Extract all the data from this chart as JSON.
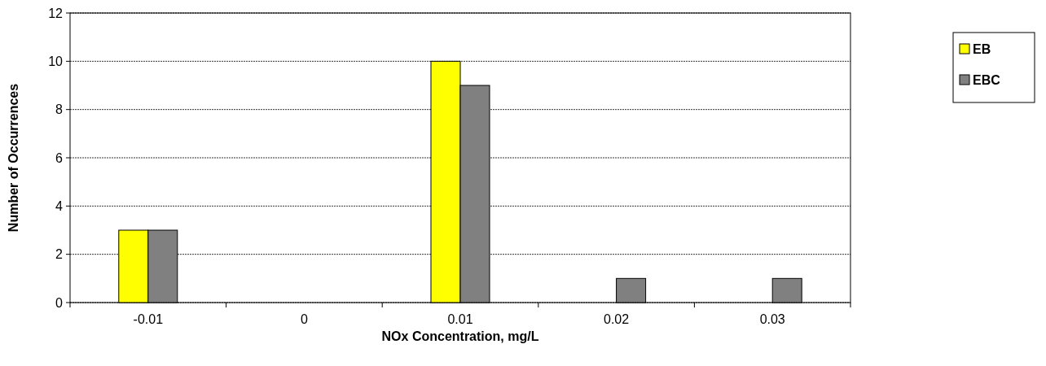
{
  "chart_data": {
    "type": "bar",
    "xlabel": "NOx Concentration, mg/L",
    "ylabel": "Number of Occurrences",
    "categories": [
      "-0.01",
      "0",
      "0.01",
      "0.02",
      "0.03"
    ],
    "series": [
      {
        "name": "EB",
        "color": "#ffff00",
        "values": [
          3,
          0,
          10,
          0,
          0
        ]
      },
      {
        "name": "EBC",
        "color": "#808080",
        "values": [
          3,
          0,
          9,
          1,
          1
        ]
      }
    ],
    "ylim": [
      0,
      12
    ],
    "yticks": [
      0,
      2,
      4,
      6,
      8,
      10,
      12
    ],
    "grid": "y",
    "legend": "right"
  }
}
